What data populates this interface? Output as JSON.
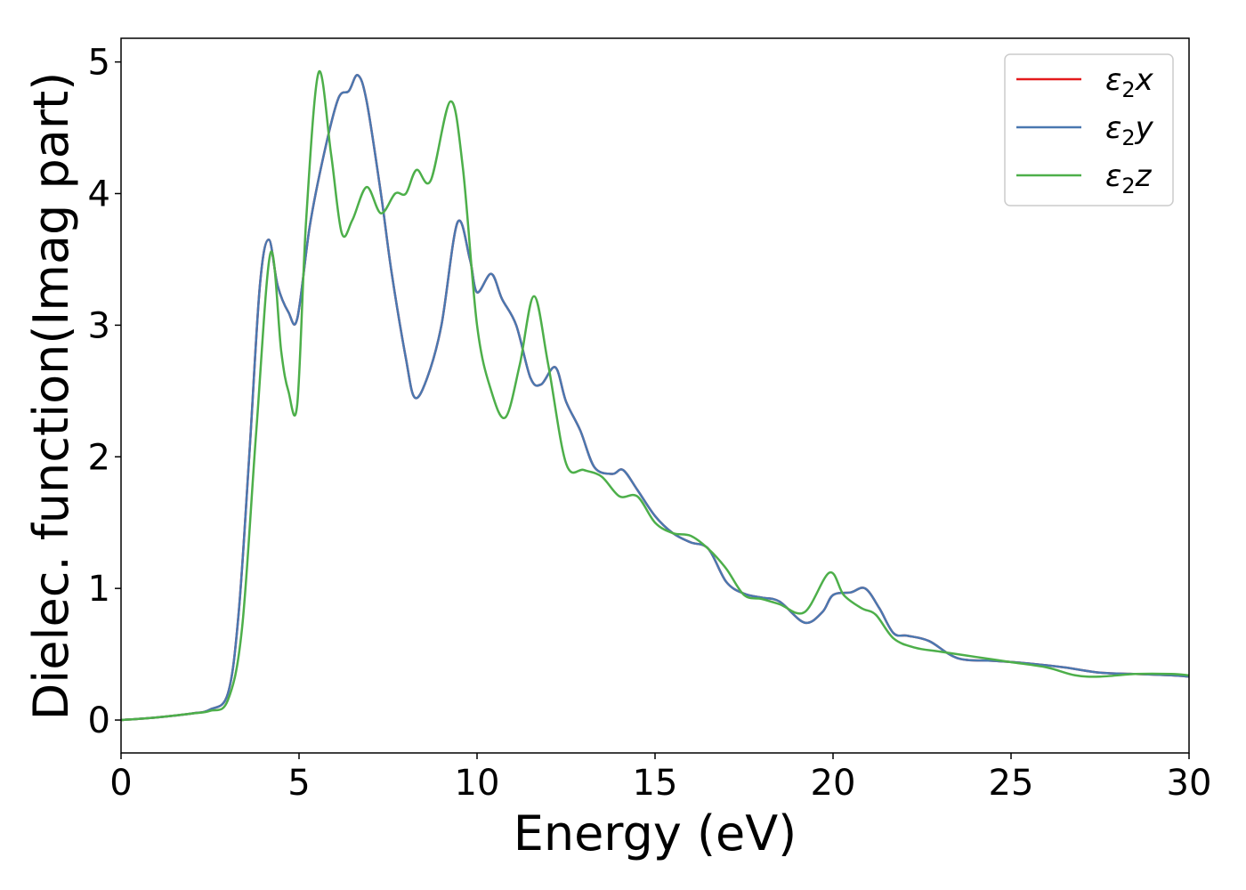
{
  "chart_data": {
    "type": "line",
    "xlabel": "Energy (eV)",
    "ylabel": "Dielec. function(Imag part)",
    "xlim": [
      0,
      30
    ],
    "ylim": [
      -0.25,
      5.18
    ],
    "x_ticks": [
      0,
      5,
      10,
      15,
      20,
      25,
      30
    ],
    "y_ticks": [
      0,
      1,
      2,
      3,
      4,
      5
    ],
    "grid": false,
    "legend_position": "top-right",
    "series": [
      {
        "name": "ε2x",
        "legend_base": "ε",
        "legend_sub": "2",
        "legend_tail": "x",
        "color": "#e41a1c",
        "x": [
          0,
          1,
          2,
          2.5,
          3,
          3.3,
          3.6,
          3.9,
          4.15,
          4.4,
          4.7,
          4.95,
          5.3,
          5.7,
          6.1,
          6.4,
          6.65,
          6.9,
          7.3,
          7.6,
          8.0,
          8.25,
          8.6,
          9.0,
          9.45,
          9.8,
          10.0,
          10.4,
          10.7,
          11.1,
          11.5,
          11.8,
          12.2,
          12.5,
          12.9,
          13.3,
          13.8,
          14.1,
          14.5,
          15.0,
          15.5,
          16.0,
          16.5,
          17.0,
          17.5,
          18.0,
          18.5,
          19.2,
          19.7,
          20.0,
          20.5,
          20.9,
          21.3,
          21.7,
          22.1,
          22.7,
          23.5,
          24.5,
          25.5,
          26.5,
          27.5,
          28.5,
          29.5,
          30
        ],
        "values": [
          0.0,
          0.02,
          0.05,
          0.08,
          0.2,
          0.8,
          2.0,
          3.3,
          3.65,
          3.3,
          3.1,
          3.05,
          3.75,
          4.3,
          4.72,
          4.78,
          4.9,
          4.7,
          4.0,
          3.4,
          2.75,
          2.45,
          2.6,
          3.0,
          3.78,
          3.5,
          3.25,
          3.39,
          3.2,
          3.0,
          2.6,
          2.55,
          2.68,
          2.42,
          2.2,
          1.92,
          1.87,
          1.9,
          1.75,
          1.55,
          1.42,
          1.35,
          1.3,
          1.05,
          0.96,
          0.93,
          0.9,
          0.74,
          0.82,
          0.95,
          0.97,
          1.0,
          0.85,
          0.66,
          0.64,
          0.6,
          0.47,
          0.45,
          0.43,
          0.4,
          0.36,
          0.35,
          0.34,
          0.33
        ]
      },
      {
        "name": "ε2y",
        "legend_base": "ε",
        "legend_sub": "2",
        "legend_tail": "y",
        "color": "#4a78b0",
        "x": [
          0,
          1,
          2,
          2.5,
          3,
          3.3,
          3.6,
          3.9,
          4.15,
          4.4,
          4.7,
          4.95,
          5.3,
          5.7,
          6.1,
          6.4,
          6.65,
          6.9,
          7.3,
          7.6,
          8.0,
          8.25,
          8.6,
          9.0,
          9.45,
          9.8,
          10.0,
          10.4,
          10.7,
          11.1,
          11.5,
          11.8,
          12.2,
          12.5,
          12.9,
          13.3,
          13.8,
          14.1,
          14.5,
          15.0,
          15.5,
          16.0,
          16.5,
          17.0,
          17.5,
          18.0,
          18.5,
          19.2,
          19.7,
          20.0,
          20.5,
          20.9,
          21.3,
          21.7,
          22.1,
          22.7,
          23.5,
          24.5,
          25.5,
          26.5,
          27.5,
          28.5,
          29.5,
          30
        ],
        "values": [
          0.0,
          0.02,
          0.05,
          0.08,
          0.2,
          0.8,
          2.0,
          3.3,
          3.65,
          3.3,
          3.1,
          3.05,
          3.75,
          4.3,
          4.72,
          4.78,
          4.9,
          4.7,
          4.0,
          3.4,
          2.75,
          2.45,
          2.6,
          3.0,
          3.78,
          3.5,
          3.25,
          3.39,
          3.2,
          3.0,
          2.6,
          2.55,
          2.68,
          2.42,
          2.2,
          1.92,
          1.87,
          1.9,
          1.75,
          1.55,
          1.42,
          1.35,
          1.3,
          1.05,
          0.96,
          0.93,
          0.9,
          0.74,
          0.82,
          0.95,
          0.97,
          1.0,
          0.85,
          0.66,
          0.64,
          0.6,
          0.47,
          0.45,
          0.43,
          0.4,
          0.36,
          0.35,
          0.34,
          0.33
        ]
      },
      {
        "name": "ε2z",
        "legend_base": "ε",
        "legend_sub": "2",
        "legend_tail": "z",
        "color": "#4daf4a",
        "x": [
          0,
          1,
          2,
          2.5,
          3,
          3.4,
          3.8,
          4.2,
          4.5,
          4.7,
          4.95,
          5.2,
          5.55,
          5.9,
          6.2,
          6.5,
          6.9,
          7.3,
          7.7,
          8.0,
          8.3,
          8.7,
          9.25,
          9.6,
          10.0,
          10.4,
          10.8,
          11.2,
          11.6,
          12.0,
          12.5,
          13.0,
          13.5,
          14.0,
          14.5,
          15.0,
          15.5,
          16.0,
          16.5,
          17.0,
          17.5,
          18.0,
          18.5,
          19.2,
          19.9,
          20.3,
          20.8,
          21.2,
          21.7,
          22.3,
          23.0,
          24.0,
          25.0,
          26.0,
          26.8,
          27.5,
          28.5,
          29.5,
          30
        ],
        "values": [
          0.0,
          0.02,
          0.05,
          0.07,
          0.15,
          0.7,
          2.2,
          3.55,
          2.8,
          2.5,
          2.4,
          3.8,
          4.92,
          4.3,
          3.7,
          3.8,
          4.05,
          3.85,
          4.0,
          4.0,
          4.18,
          4.1,
          4.7,
          4.2,
          3.0,
          2.5,
          2.3,
          2.7,
          3.22,
          2.7,
          1.95,
          1.9,
          1.85,
          1.7,
          1.7,
          1.5,
          1.42,
          1.4,
          1.3,
          1.15,
          0.95,
          0.92,
          0.88,
          0.82,
          1.12,
          0.95,
          0.85,
          0.8,
          0.62,
          0.55,
          0.52,
          0.48,
          0.44,
          0.4,
          0.34,
          0.33,
          0.35,
          0.35,
          0.34
        ]
      }
    ]
  }
}
